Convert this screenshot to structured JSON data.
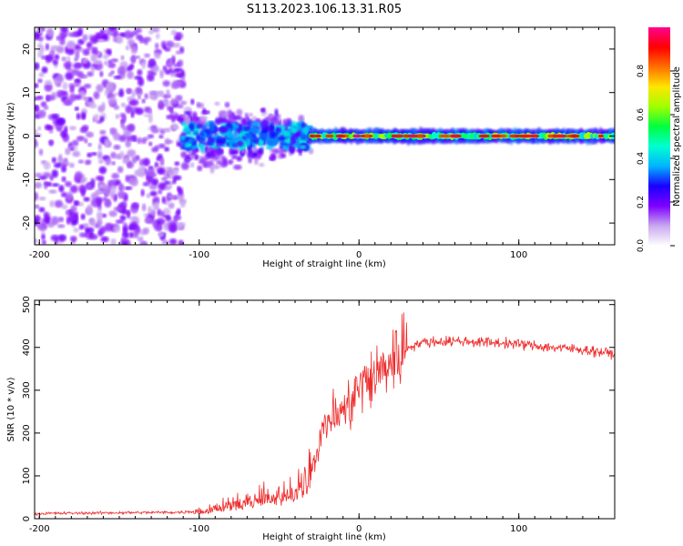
{
  "figure_title": "S113.2023.106.13.31.R05",
  "chart_data": [
    {
      "type": "heatmap",
      "title": "S113.2023.106.13.31.R05",
      "xlabel": "Height of straight line (km)",
      "ylabel": "Frequency (Hz)",
      "xlim": [
        -203,
        160
      ],
      "ylim": [
        -25,
        25
      ],
      "xticks": [
        -200,
        -100,
        0,
        100
      ],
      "yticks": [
        -20,
        -10,
        0,
        10,
        20
      ],
      "xtick_labels": [
        "-200",
        "-100",
        "0",
        "100"
      ],
      "ytick_labels": [
        "-20",
        "-10",
        "0",
        "10",
        "20"
      ],
      "colorbar": {
        "label": "Normalized spectral amplitude",
        "range": [
          0,
          1
        ],
        "ticks": [
          0.0,
          0.2,
          0.4,
          0.6,
          0.8
        ],
        "tick_labels": [
          "0.0",
          "0.2",
          "0.4",
          "0.6",
          "0.8"
        ],
        "colormap": [
          "#ffffff",
          "#c9a8ef",
          "#7d00ff",
          "#1a00ff",
          "#00b4ff",
          "#00ffd0",
          "#00ff40",
          "#a0ff00",
          "#ffe600",
          "#ff7000",
          "#ff0000",
          "#ff0090"
        ]
      },
      "regions": [
        {
          "name": "noise",
          "x_range": [
            -203,
            -110
          ],
          "freq_spread_hz": 25,
          "amplitude": 0.08
        },
        {
          "name": "transition",
          "x_range": [
            -110,
            -30
          ],
          "freq_spread_hz": 12,
          "amplitude": 0.25
        },
        {
          "name": "tone",
          "x_range": [
            -30,
            160
          ],
          "center_freq_hz": 0,
          "amplitude": 0.85
        }
      ]
    },
    {
      "type": "line",
      "xlabel": "Height of straight line (km)",
      "ylabel": "SNR (10 * v/v)",
      "xlim": [
        -203,
        160
      ],
      "ylim": [
        0,
        510
      ],
      "xticks": [
        -200,
        -100,
        0,
        100
      ],
      "yticks": [
        0,
        100,
        200,
        300,
        400,
        500
      ],
      "xtick_labels": [
        "-200",
        "-100",
        "0",
        "100"
      ],
      "ytick_labels": [
        "0",
        "100",
        "200",
        "300",
        "400",
        "500"
      ],
      "series": [
        {
          "name": "SNR",
          "color": "#ee2b2b",
          "x": [
            -203,
            -150,
            -110,
            -100,
            -80,
            -60,
            -40,
            -30,
            -20,
            -10,
            -5,
            0,
            10,
            20,
            30,
            40,
            60,
            80,
            100,
            120,
            140,
            160
          ],
          "y": [
            12,
            14,
            15,
            20,
            35,
            55,
            65,
            120,
            230,
            250,
            270,
            310,
            330,
            370,
            400,
            412,
            415,
            412,
            408,
            400,
            395,
            385
          ]
        }
      ]
    }
  ]
}
